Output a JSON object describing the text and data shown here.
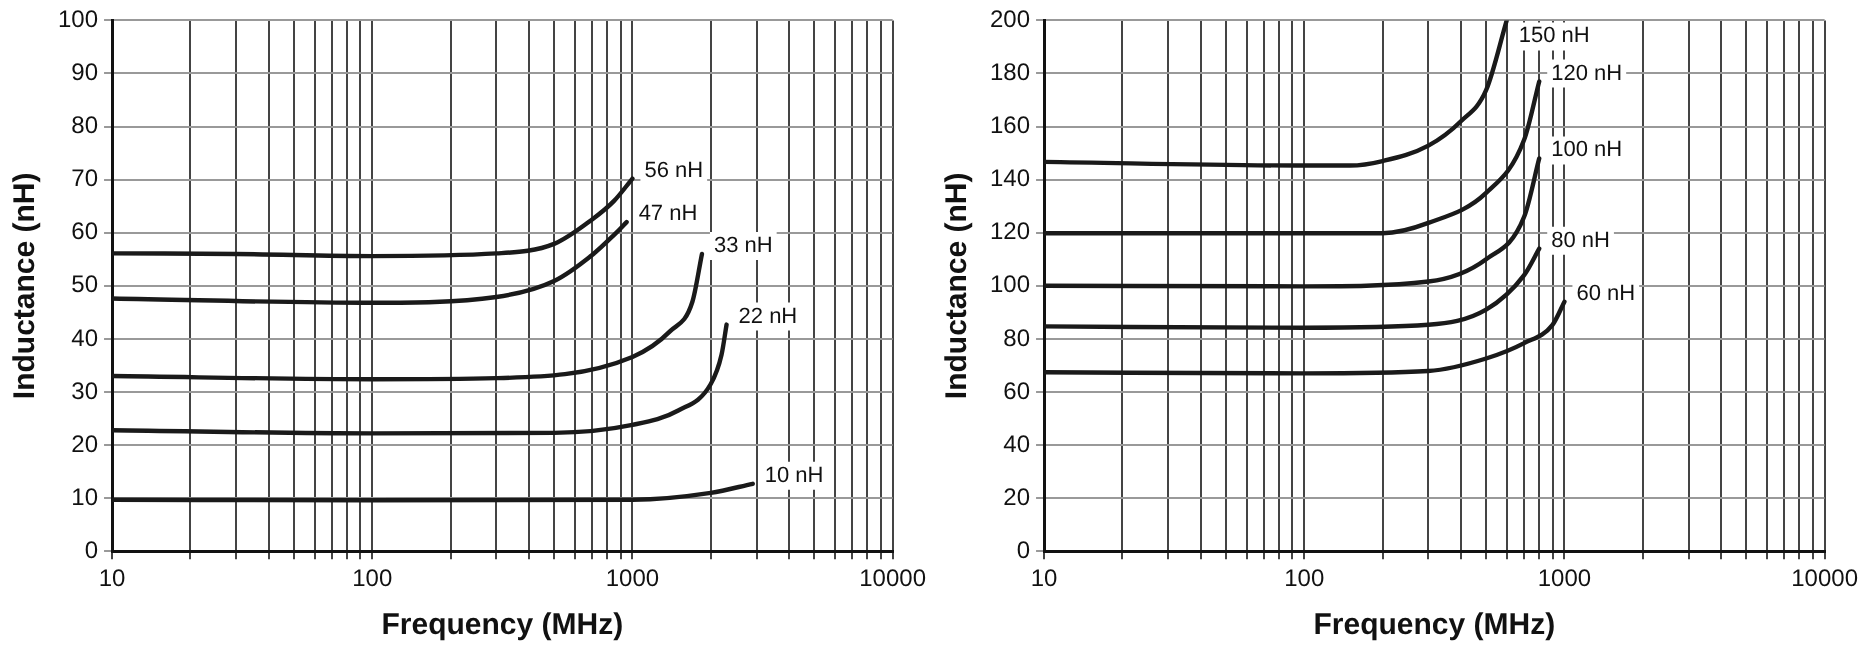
{
  "chart_data": [
    {
      "type": "line",
      "xlabel": "Frequency (MHz)",
      "ylabel": "Inductance (nH)",
      "log": "x",
      "grid": true,
      "legend": false,
      "marker": "none",
      "line_style": "solid",
      "xlim": [
        10,
        10000
      ],
      "ylim": [
        0,
        100
      ],
      "xticks": [
        10,
        {
          "value": 20,
          "label": null
        },
        {
          "value": 30,
          "label": null
        },
        {
          "value": 40,
          "label": null
        },
        {
          "value": 50,
          "label": null
        },
        {
          "value": 60,
          "label": null
        },
        {
          "value": 70,
          "label": null
        },
        {
          "value": 80,
          "label": null
        },
        {
          "value": 90,
          "label": null
        },
        100,
        {
          "value": 200,
          "label": null
        },
        {
          "value": 300,
          "label": null
        },
        {
          "value": 400,
          "label": null
        },
        {
          "value": 500,
          "label": null
        },
        {
          "value": 600,
          "label": null
        },
        {
          "value": 700,
          "label": null
        },
        {
          "value": 800,
          "label": null
        },
        {
          "value": 900,
          "label": null
        },
        1000,
        {
          "value": 2000,
          "label": null
        },
        {
          "value": 3000,
          "label": null
        },
        {
          "value": 4000,
          "label": null
        },
        {
          "value": 5000,
          "label": null
        },
        {
          "value": 6000,
          "label": null
        },
        {
          "value": 7000,
          "label": null
        },
        {
          "value": 8000,
          "label": null
        },
        {
          "value": 9000,
          "label": null
        },
        10000
      ],
      "yticks": [
        0,
        10,
        20,
        30,
        40,
        50,
        60,
        70,
        80,
        90,
        100
      ],
      "series": [
        {
          "name": "56 nH",
          "color": "#1a1a1a",
          "x": [
            10,
            30,
            100,
            300,
            500,
            700,
            850,
            1000
          ],
          "values": [
            56.1,
            56,
            55.6,
            56.1,
            57.9,
            62.5,
            66,
            70.2
          ]
        },
        {
          "name": "47 nH",
          "color": "#1a1a1a",
          "x": [
            10,
            100,
            300,
            500,
            700,
            850,
            950
          ],
          "values": [
            47.6,
            46.8,
            47.9,
            50.9,
            55.8,
            59.6,
            62
          ]
        },
        {
          "name": "33 nH",
          "color": "#1a1a1a",
          "x": [
            10,
            100,
            300,
            1000,
            1400,
            1700,
            1850
          ],
          "values": [
            33,
            32.4,
            32.6,
            36.6,
            41.5,
            47,
            56
          ]
        },
        {
          "name": "22 nH",
          "color": "#1a1a1a",
          "x": [
            10,
            100,
            500,
            1000,
            1500,
            2000,
            2200,
            2300
          ],
          "values": [
            22.8,
            22.2,
            22.3,
            23.8,
            26.5,
            31.5,
            37,
            42.7
          ]
        },
        {
          "name": "10 nH",
          "color": "#1a1a1a",
          "x": [
            10,
            100,
            1000,
            2000,
            2900
          ],
          "values": [
            9.7,
            9.6,
            9.7,
            11,
            12.7
          ]
        }
      ]
    },
    {
      "type": "line",
      "xlabel": "Frequency (MHz)",
      "ylabel": "Inductance (nH)",
      "log": "x",
      "grid": true,
      "legend": false,
      "marker": "none",
      "line_style": "solid",
      "xlim": [
        10,
        10000
      ],
      "ylim": [
        0,
        200
      ],
      "xticks": [
        10,
        {
          "value": 20,
          "label": null
        },
        {
          "value": 30,
          "label": null
        },
        {
          "value": 40,
          "label": null
        },
        {
          "value": 50,
          "label": null
        },
        {
          "value": 60,
          "label": null
        },
        {
          "value": 70,
          "label": null
        },
        {
          "value": 80,
          "label": null
        },
        {
          "value": 90,
          "label": null
        },
        100,
        {
          "value": 200,
          "label": null
        },
        {
          "value": 300,
          "label": null
        },
        {
          "value": 400,
          "label": null
        },
        {
          "value": 500,
          "label": null
        },
        {
          "value": 600,
          "label": null
        },
        {
          "value": 700,
          "label": null
        },
        {
          "value": 800,
          "label": null
        },
        {
          "value": 900,
          "label": null
        },
        1000,
        {
          "value": 2000,
          "label": null
        },
        {
          "value": 3000,
          "label": null
        },
        {
          "value": 4000,
          "label": null
        },
        {
          "value": 5000,
          "label": null
        },
        {
          "value": 6000,
          "label": null
        },
        {
          "value": 7000,
          "label": null
        },
        {
          "value": 8000,
          "label": null
        },
        {
          "value": 9000,
          "label": null
        },
        10000
      ],
      "yticks": [
        0,
        20,
        40,
        60,
        80,
        100,
        120,
        140,
        160,
        180,
        200
      ],
      "series": [
        {
          "name": "150 nH",
          "color": "#1a1a1a",
          "x": [
            10,
            100,
            150,
            200,
            300,
            400,
            500,
            600
          ],
          "values": [
            146.7,
            145.3,
            145.3,
            147,
            152.8,
            162,
            173.7,
            200
          ]
        },
        {
          "name": "120 nH",
          "color": "#1a1a1a",
          "x": [
            10,
            100,
            200,
            300,
            500,
            700,
            800
          ],
          "values": [
            119.8,
            119.8,
            119.8,
            123.7,
            135,
            155,
            177
          ]
        },
        {
          "name": "100 nH",
          "color": "#1a1a1a",
          "x": [
            10,
            100,
            300,
            500,
            700,
            800
          ],
          "values": [
            100,
            99.8,
            101.6,
            110,
            126,
            148
          ]
        },
        {
          "name": "80 nH",
          "color": "#1a1a1a",
          "x": [
            10,
            100,
            300,
            500,
            700,
            800
          ],
          "values": [
            84.7,
            84.2,
            85.3,
            91,
            104,
            114
          ]
        },
        {
          "name": "60 nH",
          "color": "#1a1a1a",
          "x": [
            10,
            100,
            300,
            500,
            700,
            900,
            1000
          ],
          "values": [
            67.4,
            67,
            67.9,
            72.6,
            78.4,
            85.3,
            94
          ]
        }
      ]
    }
  ]
}
